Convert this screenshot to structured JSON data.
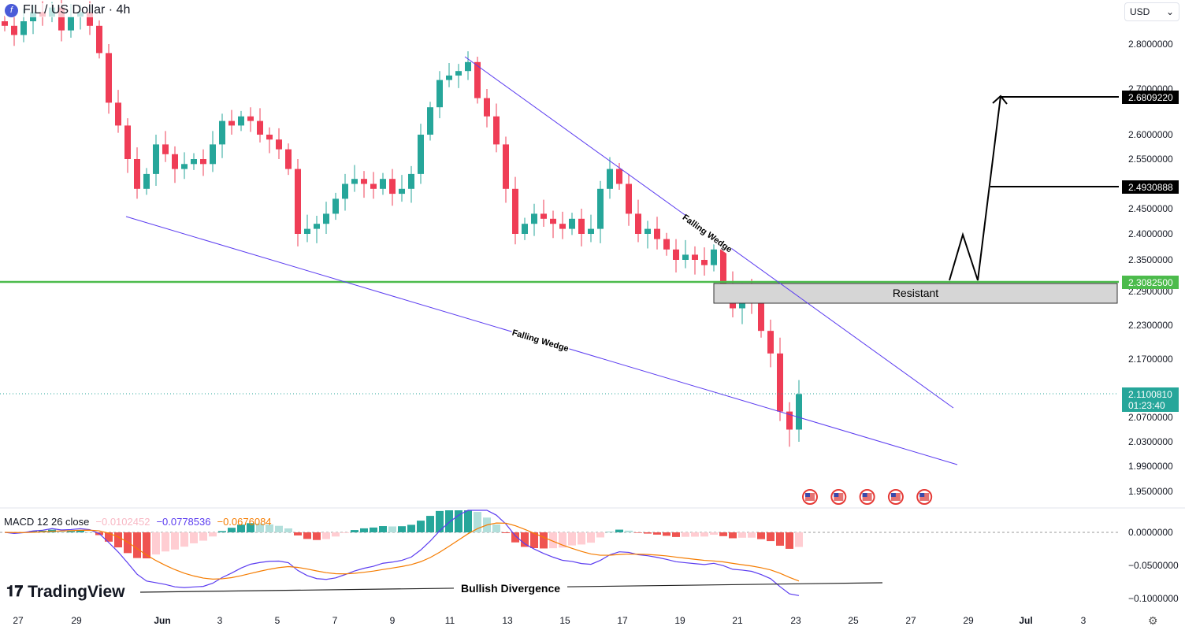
{
  "header": {
    "symbol_icon": "filecoin-logo",
    "title": "FIL / US Dollar · 4h"
  },
  "currency_select": {
    "value": "USD"
  },
  "macd_legend": {
    "label": "MACD 12 26 close",
    "histogram": "−0.0102452",
    "macd": "−0.0778536",
    "signal": "−0.0676084"
  },
  "branding": "TradingView",
  "colors": {
    "up": "#26a69a",
    "down": "#ef3d56",
    "wedge": "#5b3cf0",
    "support": "#4cbb4c",
    "macd": "#5b3cf0",
    "signal": "#f57c00",
    "hist_up": "#26a69a",
    "hist_down": "#ef5350"
  },
  "chart_data": {
    "type": "candlestick",
    "x_tick_labels": [
      "27",
      "29",
      "Jun",
      "3",
      "5",
      "7",
      "9",
      "11",
      "13",
      "15",
      "17",
      "19",
      "21",
      "23",
      "25",
      "27",
      "29",
      "Jul",
      "3"
    ],
    "price_ticks": [
      "2.8000000",
      "2.7000000",
      "2.6000000",
      "2.5500000",
      "2.4500000",
      "2.4000000",
      "2.3500000",
      "2.2900000",
      "2.2300000",
      "2.1700000",
      "2.0700000",
      "2.0300000",
      "1.9900000",
      "1.9500000"
    ],
    "macd_ticks": [
      "0.0000000",
      "−0.0500000",
      "−0.1000000"
    ],
    "closes": [
      2.84,
      2.82,
      2.85,
      2.87,
      2.86,
      2.88,
      2.83,
      2.86,
      2.87,
      2.84,
      2.78,
      2.67,
      2.62,
      2.55,
      2.49,
      2.52,
      2.58,
      2.56,
      2.53,
      2.54,
      2.55,
      2.54,
      2.58,
      2.63,
      2.62,
      2.64,
      2.63,
      2.6,
      2.59,
      2.57,
      2.53,
      2.4,
      2.41,
      2.42,
      2.44,
      2.47,
      2.5,
      2.51,
      2.5,
      2.49,
      2.51,
      2.48,
      2.49,
      2.52,
      2.6,
      2.66,
      2.72,
      2.73,
      2.74,
      2.76,
      2.68,
      2.64,
      2.58,
      2.49,
      2.4,
      2.42,
      2.44,
      2.43,
      2.42,
      2.41,
      2.43,
      2.4,
      2.41,
      2.49,
      2.53,
      2.5,
      2.44,
      2.4,
      2.41,
      2.39,
      2.37,
      2.35,
      2.36,
      2.35,
      2.34,
      2.37,
      2.3,
      2.26,
      2.29,
      2.27,
      2.22,
      2.18,
      2.08,
      2.05,
      2.11
    ],
    "last_price": {
      "value": "2.1100810",
      "countdown": "01:23:40"
    },
    "levels": [
      {
        "value": "2.6809220",
        "color": "#000000"
      },
      {
        "value": "2.4930888",
        "color": "#000000"
      },
      {
        "value": "2.3082500",
        "color": "#4cbb4c"
      }
    ],
    "annotations": {
      "upper_wedge": "Falling Wedge",
      "lower_wedge": "Falling Wedge",
      "zone": "Resistant",
      "divergence": "Bullish Divergence"
    },
    "events": [
      "us-flag-icon",
      "us-flag-icon",
      "us-flag-icon",
      "us-flag-icon",
      "us-flag-icon"
    ]
  }
}
